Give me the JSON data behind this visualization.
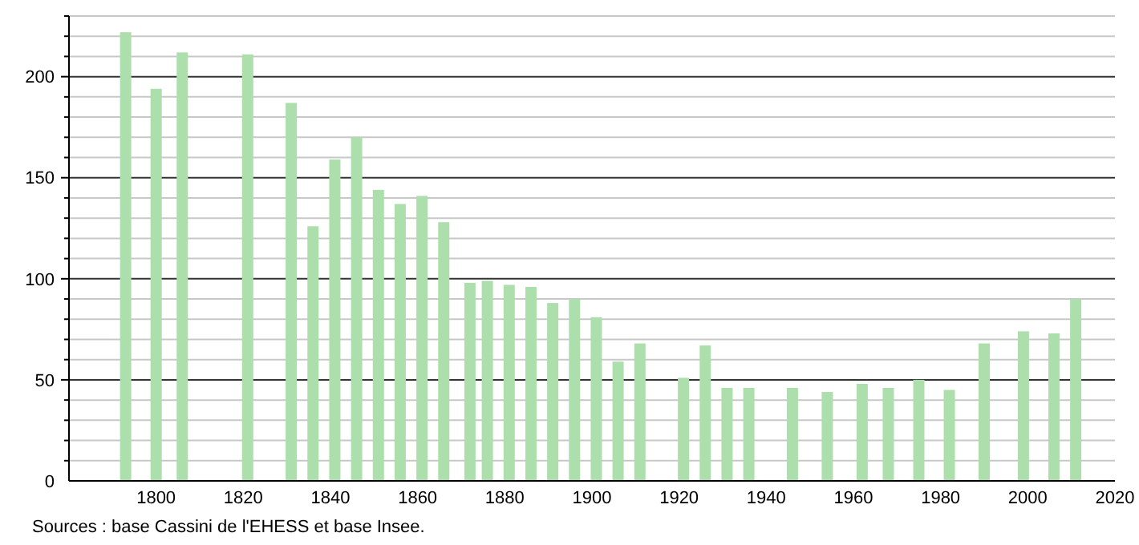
{
  "chart_data": {
    "type": "bar",
    "x": [
      "1793",
      "1800",
      "1806",
      "1821",
      "1831",
      "1836",
      "1841",
      "1846",
      "1851",
      "1856",
      "1861",
      "1866",
      "1872",
      "1876",
      "1881",
      "1886",
      "1891",
      "1896",
      "1901",
      "1906",
      "1911",
      "1921",
      "1926",
      "1931",
      "1936",
      "1946",
      "1954",
      "1962",
      "1968",
      "1975",
      "1982",
      "1990",
      "1999",
      "2006",
      "2011"
    ],
    "values": [
      222,
      194,
      212,
      211,
      187,
      126,
      159,
      170,
      144,
      137,
      141,
      128,
      98,
      99,
      97,
      96,
      88,
      90,
      81,
      59,
      68,
      51,
      67,
      46,
      46,
      46,
      44,
      48,
      46,
      50,
      45,
      68,
      74,
      73,
      90
    ],
    "color": "#addfad",
    "xlim": [
      "1780",
      "2020"
    ],
    "xticks": [
      "1800",
      "1820",
      "1840",
      "1860",
      "1880",
      "1900",
      "1920",
      "1940",
      "1960",
      "1980",
      "2000",
      "2020"
    ],
    "ylim": [
      0,
      230
    ],
    "yticks": [
      0,
      {
        "value": 10,
        "label": null
      },
      {
        "value": 20,
        "label": null
      },
      {
        "value": 30,
        "label": null
      },
      {
        "value": 40,
        "label": null
      },
      50,
      {
        "value": 60,
        "label": null
      },
      {
        "value": 70,
        "label": null
      },
      {
        "value": 80,
        "label": null
      },
      {
        "value": 90,
        "label": null
      },
      100,
      {
        "value": 110,
        "label": null
      },
      {
        "value": 120,
        "label": null
      },
      {
        "value": 130,
        "label": null
      },
      {
        "value": 140,
        "label": null
      },
      150,
      {
        "value": 160,
        "label": null
      },
      {
        "value": 170,
        "label": null
      },
      {
        "value": 180,
        "label": null
      },
      {
        "value": 190,
        "label": null
      },
      200,
      {
        "value": 210,
        "label": null
      },
      {
        "value": 220,
        "label": null
      },
      {
        "value": 230,
        "label": null
      }
    ],
    "grid": "y",
    "annotations": [
      "Sources : base Cassini de l'EHESS et base Insee."
    ]
  }
}
